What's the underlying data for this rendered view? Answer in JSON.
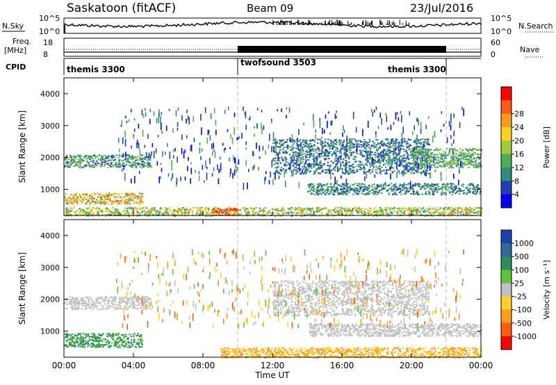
{
  "header": {
    "site": "Saskatoon (fitACF)",
    "beam": "Beam 09",
    "date": "23/Jul/2016"
  },
  "nsky_panel": {
    "left_label": "N.Sky",
    "left_ticks": [
      "10^5",
      "10^0"
    ],
    "right_label": "N.Search",
    "right_ticks": [
      "10^5",
      "10^0"
    ]
  },
  "freq_panel": {
    "left_label_1": "Freq.",
    "left_label_2": "[MHz]",
    "left_ticks": [
      "18",
      "8"
    ],
    "right_label": "Nave",
    "right_ticks": [
      "60",
      "0"
    ]
  },
  "cpid_panel": {
    "label": "CPID",
    "modes": [
      {
        "name": "themis 3300",
        "start_hour": 0,
        "end_hour": 10
      },
      {
        "name": "twofsound 3503",
        "start_hour": 10,
        "end_hour": 22
      },
      {
        "name": "themis 3300",
        "start_hour": 22,
        "end_hour": 24
      }
    ]
  },
  "chart_data": [
    {
      "type": "heatmap",
      "title": "",
      "ylabel": "Slant Range [km]",
      "xlabel": "",
      "ylim": [
        180,
        4500
      ],
      "xlim": [
        0,
        24
      ],
      "yticks": [
        "1000",
        "2000",
        "3000",
        "4000"
      ],
      "colorbar": {
        "label": "Power [dB]",
        "ticks": [
          "4",
          "8",
          "12",
          "16",
          "20",
          "24",
          "28"
        ],
        "colors": [
          "#0000ff",
          "#1f3fb5",
          "#2d8b7a",
          "#4fae52",
          "#9ec93a",
          "#ffd21f",
          "#ff9a1a",
          "#ff5a14",
          "#ff0000"
        ]
      },
      "features": [
        {
          "name": "band-1900km-early",
          "x": [
            0,
            5
          ],
          "y": [
            1700,
            2100
          ],
          "level": [
            4,
            16
          ]
        },
        {
          "name": "band-700km-early",
          "x": [
            0,
            4.5
          ],
          "y": [
            550,
            900
          ],
          "level": [
            12,
            28
          ]
        },
        {
          "name": "band-near-range",
          "x": [
            0,
            24
          ],
          "y": [
            180,
            450
          ],
          "level": [
            8,
            24
          ]
        },
        {
          "name": "strong-burst-0930",
          "x": [
            8.5,
            10
          ],
          "y": [
            200,
            420
          ],
          "level": [
            24,
            30
          ]
        },
        {
          "name": "arc-afternoon",
          "x": [
            12,
            21
          ],
          "y": [
            1500,
            2600
          ],
          "level": [
            4,
            12
          ]
        },
        {
          "name": "band-1000km-evening",
          "x": [
            14,
            24
          ],
          "y": [
            850,
            1200
          ],
          "level": [
            4,
            14
          ]
        },
        {
          "name": "band-2000km-late",
          "x": [
            20,
            24
          ],
          "y": [
            1700,
            2300
          ],
          "level": [
            8,
            16
          ]
        }
      ]
    },
    {
      "type": "heatmap",
      "title": "",
      "ylabel": "Slant Range [km]",
      "xlabel": "Time UT",
      "ylim": [
        180,
        4500
      ],
      "xlim": [
        0,
        24
      ],
      "yticks": [
        "1000",
        "2000",
        "3000",
        "4000"
      ],
      "xticks": [
        "00:00",
        "04:00",
        "08:00",
        "12:00",
        "16:00",
        "20:00",
        "00:00"
      ],
      "colorbar": {
        "label": "Velocity [m s⁻¹]",
        "ticks": [
          "1000",
          "500",
          "100",
          "25",
          "-25",
          "-100",
          "-500",
          "-1000"
        ],
        "colors": [
          "#1f3fb5",
          "#2d6a9a",
          "#2d8b5a",
          "#5cc43a",
          "#c0c0c0",
          "#ffd21f",
          "#ff9a1a",
          "#ff5a14",
          "#ff0000"
        ]
      },
      "features": [
        {
          "name": "grey-band-1900km",
          "x": [
            0,
            5
          ],
          "y": [
            1700,
            2100
          ],
          "level": [
            -25,
            25
          ]
        },
        {
          "name": "green-band-700km",
          "x": [
            0,
            4.5
          ],
          "y": [
            500,
            950
          ],
          "level": [
            50,
            200
          ]
        },
        {
          "name": "yellow-near-range",
          "x": [
            9,
            24
          ],
          "y": [
            180,
            500
          ],
          "level": [
            -200,
            -30
          ]
        },
        {
          "name": "grey-arc-afternoon",
          "x": [
            12,
            21
          ],
          "y": [
            1500,
            2600
          ],
          "level": [
            -25,
            25
          ]
        },
        {
          "name": "grey-band-1000km",
          "x": [
            14,
            24
          ],
          "y": [
            850,
            1250
          ],
          "level": [
            -25,
            25
          ]
        }
      ]
    }
  ]
}
